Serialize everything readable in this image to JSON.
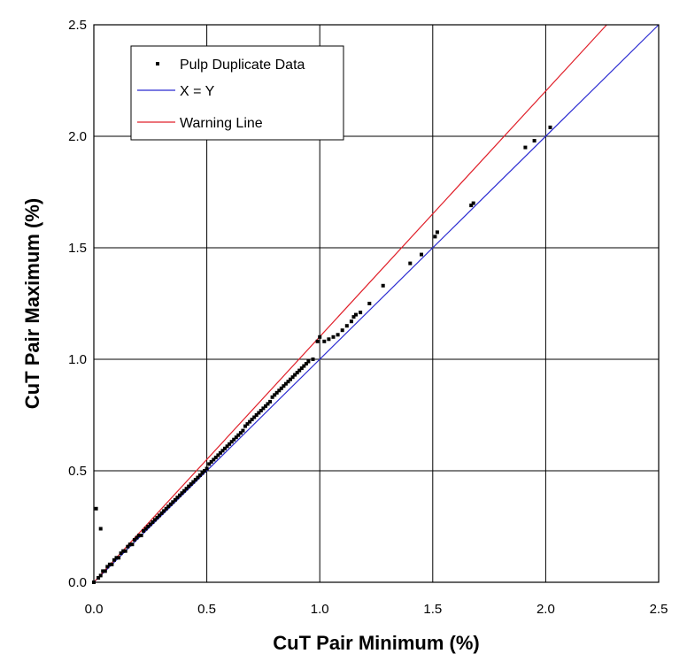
{
  "chart_data": {
    "type": "scatter",
    "title": "",
    "xlabel": "CuT Pair Minimum (%)",
    "ylabel": "CuT Pair Maximum (%)",
    "xlim": [
      0.0,
      2.5
    ],
    "ylim": [
      0.0,
      2.5
    ],
    "x_ticks": [
      "0.0",
      "0.5",
      "1.0",
      "1.5",
      "2.0",
      "2.5"
    ],
    "y_ticks": [
      "0.0",
      "0.5",
      "1.0",
      "1.5",
      "2.0",
      "2.5"
    ],
    "grid": true,
    "legend": {
      "position": "top-left",
      "entries": [
        "Pulp Duplicate Data",
        "X = Y",
        "Warning Line"
      ]
    },
    "series": [
      {
        "name": "Pulp Duplicate Data",
        "kind": "points",
        "color": "#000000",
        "points": [
          [
            0.0,
            0.0
          ],
          [
            0.01,
            0.33
          ],
          [
            0.02,
            0.02
          ],
          [
            0.03,
            0.24
          ],
          [
            0.03,
            0.03
          ],
          [
            0.04,
            0.05
          ],
          [
            0.05,
            0.05
          ],
          [
            0.06,
            0.07
          ],
          [
            0.07,
            0.08
          ],
          [
            0.08,
            0.08
          ],
          [
            0.09,
            0.1
          ],
          [
            0.1,
            0.11
          ],
          [
            0.11,
            0.11
          ],
          [
            0.12,
            0.13
          ],
          [
            0.13,
            0.14
          ],
          [
            0.14,
            0.14
          ],
          [
            0.15,
            0.16
          ],
          [
            0.16,
            0.17
          ],
          [
            0.17,
            0.17
          ],
          [
            0.18,
            0.19
          ],
          [
            0.19,
            0.2
          ],
          [
            0.2,
            0.21
          ],
          [
            0.21,
            0.21
          ],
          [
            0.22,
            0.23
          ],
          [
            0.23,
            0.24
          ],
          [
            0.24,
            0.25
          ],
          [
            0.25,
            0.26
          ],
          [
            0.26,
            0.27
          ],
          [
            0.27,
            0.28
          ],
          [
            0.28,
            0.29
          ],
          [
            0.29,
            0.3
          ],
          [
            0.3,
            0.31
          ],
          [
            0.31,
            0.32
          ],
          [
            0.32,
            0.33
          ],
          [
            0.33,
            0.34
          ],
          [
            0.34,
            0.35
          ],
          [
            0.35,
            0.36
          ],
          [
            0.36,
            0.37
          ],
          [
            0.37,
            0.38
          ],
          [
            0.38,
            0.39
          ],
          [
            0.39,
            0.4
          ],
          [
            0.4,
            0.41
          ],
          [
            0.41,
            0.42
          ],
          [
            0.42,
            0.43
          ],
          [
            0.43,
            0.44
          ],
          [
            0.44,
            0.45
          ],
          [
            0.45,
            0.46
          ],
          [
            0.46,
            0.47
          ],
          [
            0.47,
            0.48
          ],
          [
            0.48,
            0.49
          ],
          [
            0.49,
            0.5
          ],
          [
            0.5,
            0.51
          ],
          [
            0.51,
            0.53
          ],
          [
            0.52,
            0.54
          ],
          [
            0.53,
            0.55
          ],
          [
            0.54,
            0.56
          ],
          [
            0.55,
            0.57
          ],
          [
            0.56,
            0.58
          ],
          [
            0.57,
            0.59
          ],
          [
            0.58,
            0.6
          ],
          [
            0.59,
            0.61
          ],
          [
            0.6,
            0.62
          ],
          [
            0.61,
            0.63
          ],
          [
            0.62,
            0.64
          ],
          [
            0.63,
            0.65
          ],
          [
            0.64,
            0.66
          ],
          [
            0.65,
            0.67
          ],
          [
            0.66,
            0.68
          ],
          [
            0.67,
            0.7
          ],
          [
            0.68,
            0.71
          ],
          [
            0.69,
            0.72
          ],
          [
            0.7,
            0.73
          ],
          [
            0.71,
            0.74
          ],
          [
            0.72,
            0.75
          ],
          [
            0.73,
            0.76
          ],
          [
            0.74,
            0.77
          ],
          [
            0.75,
            0.78
          ],
          [
            0.76,
            0.79
          ],
          [
            0.77,
            0.8
          ],
          [
            0.78,
            0.81
          ],
          [
            0.79,
            0.83
          ],
          [
            0.8,
            0.84
          ],
          [
            0.81,
            0.85
          ],
          [
            0.82,
            0.86
          ],
          [
            0.83,
            0.87
          ],
          [
            0.84,
            0.88
          ],
          [
            0.85,
            0.89
          ],
          [
            0.86,
            0.9
          ],
          [
            0.87,
            0.91
          ],
          [
            0.88,
            0.92
          ],
          [
            0.89,
            0.93
          ],
          [
            0.9,
            0.94
          ],
          [
            0.91,
            0.95
          ],
          [
            0.92,
            0.96
          ],
          [
            0.93,
            0.97
          ],
          [
            0.94,
            0.98
          ],
          [
            0.95,
            0.99
          ],
          [
            0.97,
            1.0
          ],
          [
            0.99,
            1.08
          ],
          [
            1.0,
            1.1
          ],
          [
            1.02,
            1.08
          ],
          [
            1.04,
            1.09
          ],
          [
            1.06,
            1.1
          ],
          [
            1.08,
            1.11
          ],
          [
            1.1,
            1.13
          ],
          [
            1.12,
            1.15
          ],
          [
            1.14,
            1.17
          ],
          [
            1.15,
            1.19
          ],
          [
            1.16,
            1.2
          ],
          [
            1.18,
            1.21
          ],
          [
            1.22,
            1.25
          ],
          [
            1.28,
            1.33
          ],
          [
            1.4,
            1.43
          ],
          [
            1.45,
            1.47
          ],
          [
            1.51,
            1.55
          ],
          [
            1.52,
            1.57
          ],
          [
            1.67,
            1.69
          ],
          [
            1.68,
            1.7
          ],
          [
            1.91,
            1.95
          ],
          [
            1.95,
            1.98
          ],
          [
            2.02,
            2.04
          ]
        ]
      },
      {
        "name": "X = Y",
        "kind": "line",
        "color": "#2b2bd1",
        "points": [
          [
            0.0,
            0.0
          ],
          [
            2.5,
            2.5
          ]
        ]
      },
      {
        "name": "Warning Line",
        "kind": "line",
        "color": "#e0202a",
        "points": [
          [
            0.0,
            0.0
          ],
          [
            2.27,
            2.5
          ]
        ]
      }
    ]
  }
}
